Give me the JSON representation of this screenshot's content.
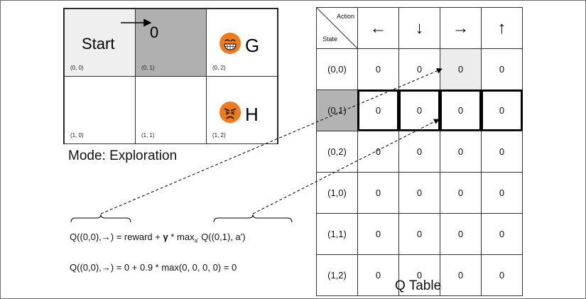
{
  "grid": {
    "cells": [
      {
        "coord": "(0, 0)",
        "label": "Start"
      },
      {
        "coord": "(0, 1)",
        "label": "0"
      },
      {
        "coord": "(0, 2)",
        "label": "G"
      },
      {
        "coord": "(1, 0)",
        "label": ""
      },
      {
        "coord": "(1, 1)",
        "label": ""
      },
      {
        "coord": "(1, 2)",
        "label": "H"
      }
    ],
    "mode": "Mode: Exploration"
  },
  "qtable": {
    "corner_action": "Action",
    "corner_state": "State",
    "actions": [
      "←",
      "↓",
      "→",
      "↑"
    ],
    "rows": [
      {
        "state": "(0,0)",
        "values": [
          "0",
          "0",
          "0",
          "0"
        ]
      },
      {
        "state": "(0,1)",
        "values": [
          "0",
          "0",
          "0",
          "0"
        ]
      },
      {
        "state": "(0,2)",
        "values": [
          "0",
          "0",
          "0",
          "0"
        ]
      },
      {
        "state": "(1,0)",
        "values": [
          "0",
          "0",
          "0",
          "0"
        ]
      },
      {
        "state": "(1,1)",
        "values": [
          "0",
          "0",
          "0",
          "0"
        ]
      },
      {
        "state": "(1,2)",
        "values": [
          "0",
          "0",
          "0",
          "0"
        ]
      }
    ],
    "title": "Q Table"
  },
  "equations": {
    "line1_a": "Q((0,0),→) = reward + ",
    "line1_gamma": "γ",
    "line1_b": " * max",
    "line1_sub": "a'",
    "line1_c": " Q((0,1), a')",
    "line2": "Q((0,0),→) = 0 + 0.9 * max(0, 0, 0, 0) = 0"
  },
  "colors": {
    "emoji": "#f07a1c",
    "agent_cell": "#b0b0b0",
    "start_cell": "#efefef"
  }
}
